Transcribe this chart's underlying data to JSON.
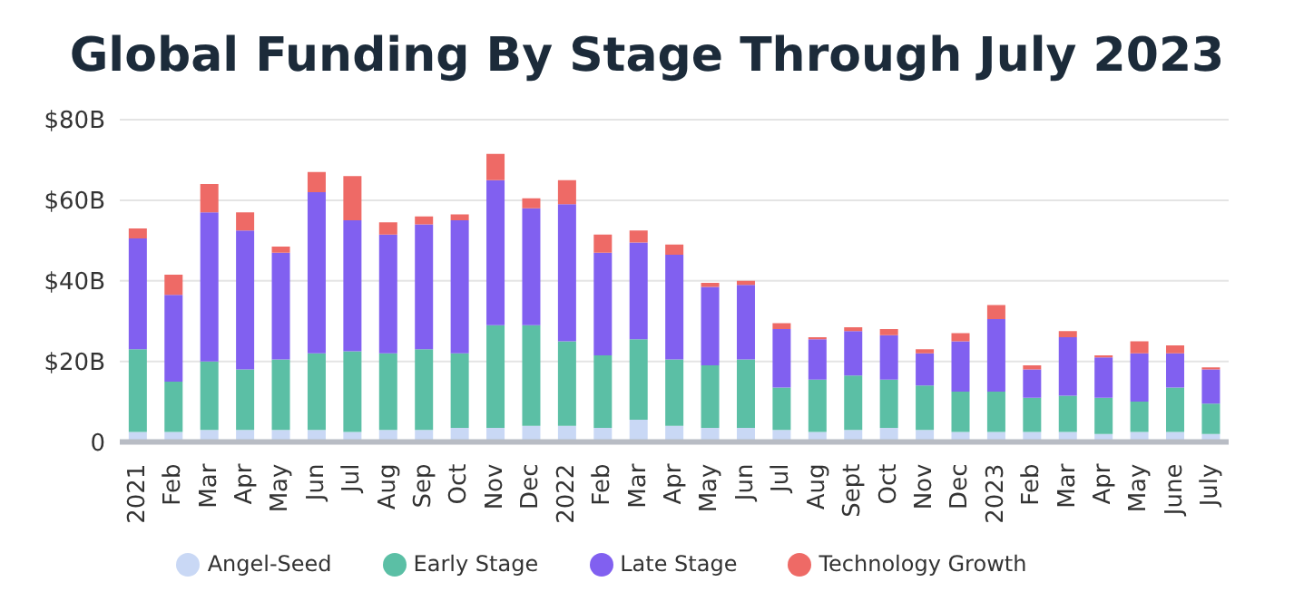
{
  "chart_data": {
    "type": "bar",
    "title": "Global Funding By Stage Through July 2023",
    "stacked": true,
    "categories": [
      "2021",
      "Feb",
      "Mar",
      "Apr",
      "May",
      "Jun",
      "Jul",
      "Aug",
      "Sep",
      "Oct",
      "Nov",
      "Dec",
      "2022",
      "Feb",
      "Mar",
      "Apr",
      "May",
      "Jun",
      "Jul",
      "Aug",
      "Sept",
      "Oct",
      "Nov",
      "Dec",
      "2023",
      "Feb",
      "Mar",
      "Apr",
      "May",
      "June",
      "July"
    ],
    "series": [
      {
        "name": "Angel-Seed",
        "color": "#c9d8f5",
        "values": [
          2.5,
          2.5,
          3,
          3,
          3,
          3,
          2.5,
          3,
          3,
          3.5,
          3.5,
          4,
          4,
          3.5,
          5.5,
          4,
          3.5,
          3.5,
          3,
          2.5,
          3,
          3.5,
          3,
          2.5,
          2.5,
          2.5,
          2.5,
          2,
          2.5,
          2.5,
          2
        ]
      },
      {
        "name": "Early Stage",
        "color": "#5bbfa5",
        "values": [
          20.5,
          12.5,
          17,
          15,
          17.5,
          19,
          20,
          19,
          20,
          18.5,
          25.5,
          25,
          21,
          18,
          20,
          16.5,
          15.5,
          17,
          10.5,
          13,
          13.5,
          12,
          11,
          10,
          10,
          8.5,
          9,
          9,
          7.5,
          11,
          7.5
        ]
      },
      {
        "name": "Late Stage",
        "color": "#8160f0",
        "values": [
          27.5,
          21.5,
          37,
          34.5,
          26.5,
          40,
          32.5,
          29.5,
          31,
          33,
          36,
          29,
          34,
          25.5,
          24,
          26,
          19.5,
          18.5,
          14.5,
          10,
          11,
          11,
          8,
          12.5,
          18,
          7,
          14.5,
          10,
          12,
          8.5,
          8.5
        ]
      },
      {
        "name": "Technology Growth",
        "color": "#ee6a66",
        "values": [
          2.5,
          5,
          7,
          4.5,
          1.5,
          5,
          11,
          3,
          2,
          1.5,
          6.5,
          2.5,
          6,
          4.5,
          3,
          2.5,
          1,
          1,
          1.5,
          0.5,
          1,
          1.5,
          1,
          2,
          3.5,
          1,
          1.5,
          0.5,
          3,
          2,
          0.5
        ]
      }
    ],
    "ylim": [
      0,
      80
    ],
    "yticks": [
      {
        "value": 0,
        "label": "0"
      },
      {
        "value": 20,
        "label": "$20B"
      },
      {
        "value": 40,
        "label": "$40B"
      },
      {
        "value": 60,
        "label": "$60B"
      },
      {
        "value": 80,
        "label": "$80B"
      }
    ],
    "grid": "y",
    "legend": "bottom"
  }
}
